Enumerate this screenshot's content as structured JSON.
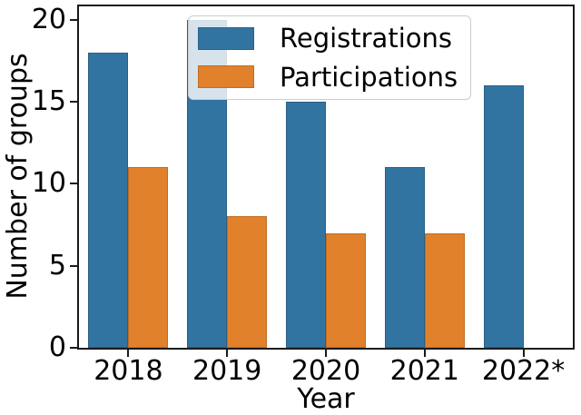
{
  "figure": {
    "background": "#ffffff",
    "spine_color": "#1a1a1a",
    "text_color": "#000000"
  },
  "chart_data": {
    "type": "bar",
    "title": "",
    "xlabel": "Year",
    "ylabel": "Number of groups",
    "categories": [
      "2018",
      "2019",
      "2020",
      "2021",
      "2022*"
    ],
    "series": [
      {
        "name": "Registrations",
        "color": "#3274a1",
        "values": [
          18,
          20,
          15,
          11,
          16
        ]
      },
      {
        "name": "Participations",
        "color": "#e1812c",
        "values": [
          11,
          8,
          7,
          7,
          null
        ]
      }
    ],
    "ylim": [
      0,
      20.8
    ],
    "yticks": [
      0,
      5,
      10,
      15,
      20
    ],
    "grid": false,
    "legend_position": "upper center",
    "legend_background": "rgba(255,255,255,0.8)",
    "legend_border_color": "#cccccc"
  }
}
